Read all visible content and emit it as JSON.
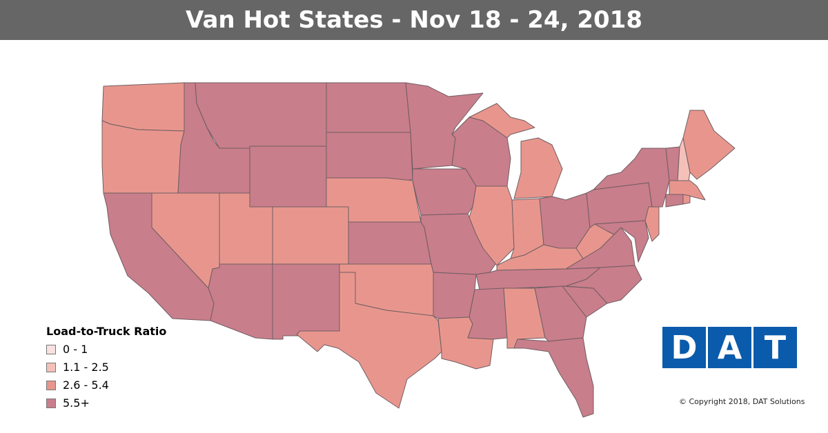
{
  "header": {
    "title": "Van Hot States - Nov 18 - 24, 2018"
  },
  "legend": {
    "title": "Load-to-Truck Ratio",
    "items": [
      {
        "label": "0 - 1",
        "color": "#f9e1e1"
      },
      {
        "label": "1.1 - 2.5",
        "color": "#f4c1b9"
      },
      {
        "label": "2.6 - 5.4",
        "color": "#e8968d"
      },
      {
        "label": "5.5+",
        "color": "#c97e8b"
      }
    ]
  },
  "logo": [
    "D",
    "A",
    "T"
  ],
  "copyright": "© Copyright 2018, DAT Solutions"
}
